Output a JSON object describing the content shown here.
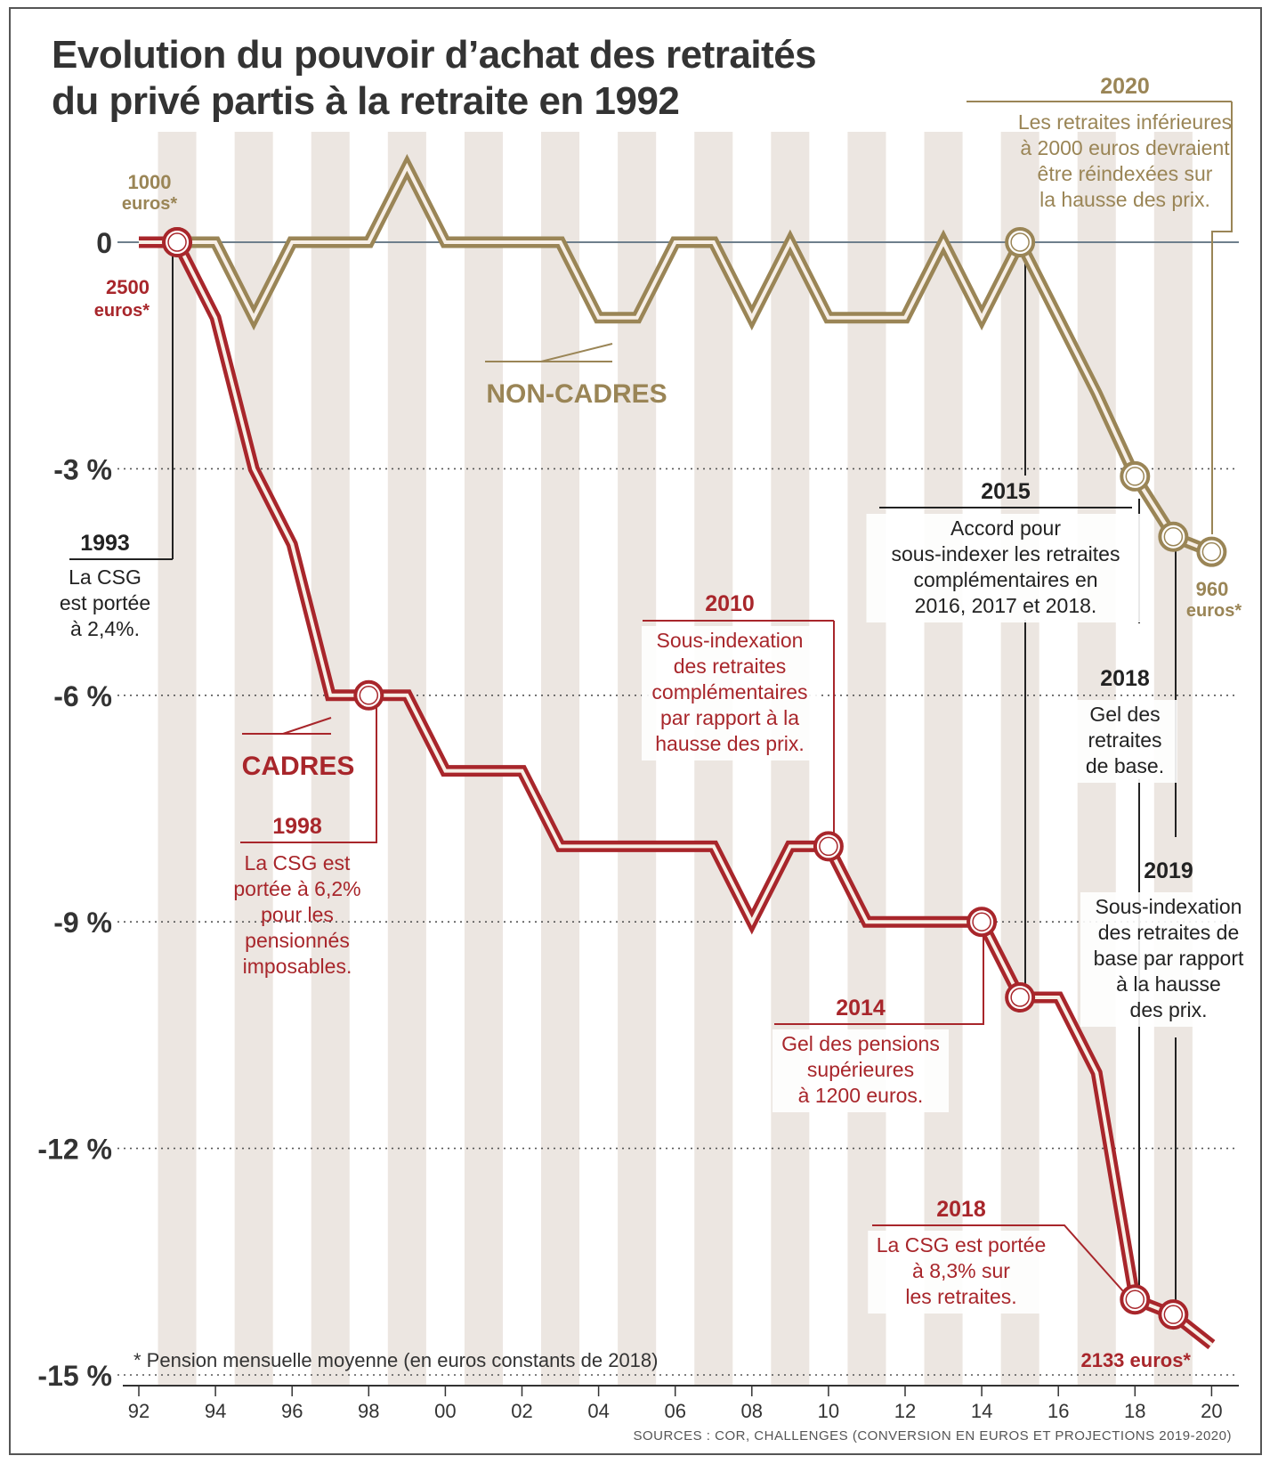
{
  "title_line1": "Evolution du pouvoir d’achat des retraités",
  "title_line2": "du privé partis à la retraite en 1992",
  "footnote": "* Pension mensuelle moyenne (en euros constants de 2018)",
  "sources": "SOURCES : COR, CHALLENGES (CONVERSION EN EUROS ET PROJECTIONS 2019-2020)",
  "colors": {
    "cadres": "#a8262b",
    "non_cadres": "#9a8556",
    "stripe": "#ece6e1",
    "text": "#333333"
  },
  "chart_data": {
    "type": "line",
    "title": "Evolution du pouvoir d’achat des retraités du privé partis à la retraite en 1992",
    "xlabel": "",
    "ylabel": "",
    "xlim": [
      1992,
      2020.5
    ],
    "ylim": [
      -15,
      1
    ],
    "x_ticks": [
      1992,
      1994,
      1996,
      1998,
      2000,
      2002,
      2004,
      2006,
      2008,
      2010,
      2012,
      2014,
      2016,
      2018,
      2020
    ],
    "x_tick_labels": [
      "92",
      "94",
      "96",
      "98",
      "00",
      "02",
      "04",
      "06",
      "08",
      "10",
      "12",
      "14",
      "16",
      "18",
      "20"
    ],
    "y_ticks": [
      0,
      -3,
      -6,
      -9,
      -12,
      -15
    ],
    "y_tick_labels": [
      "0",
      "-3 %",
      "-6 %",
      "-9 %",
      "-12 %",
      "-15 %"
    ],
    "grid": "dotted horizontal at ticks",
    "series": [
      {
        "name": "NON-CADRES",
        "points": [
          [
            1993,
            0
          ],
          [
            1994,
            0
          ],
          [
            1995,
            -1
          ],
          [
            1996,
            0
          ],
          [
            1997,
            0
          ],
          [
            1998,
            0
          ],
          [
            1999,
            1
          ],
          [
            2000,
            0
          ],
          [
            2001,
            0
          ],
          [
            2002,
            0
          ],
          [
            2003,
            0
          ],
          [
            2004,
            -1
          ],
          [
            2005,
            -1
          ],
          [
            2006,
            0
          ],
          [
            2007,
            0
          ],
          [
            2008,
            -1
          ],
          [
            2009,
            0
          ],
          [
            2010,
            -1
          ],
          [
            2011,
            -1
          ],
          [
            2012,
            -1
          ],
          [
            2013,
            0
          ],
          [
            2014,
            -1
          ],
          [
            2015,
            0
          ],
          [
            2016,
            -1
          ],
          [
            2017,
            -2
          ],
          [
            2018,
            -3.1
          ],
          [
            2019,
            -3.9
          ],
          [
            2020,
            -4.1
          ]
        ],
        "markers": [
          [
            1993,
            0
          ],
          [
            2015,
            0
          ],
          [
            2018,
            -3.1
          ],
          [
            2019,
            -3.9
          ],
          [
            2020,
            -4.1
          ]
        ]
      },
      {
        "name": "CADRES",
        "points": [
          [
            1992,
            0
          ],
          [
            1993,
            0
          ],
          [
            1994,
            -1
          ],
          [
            1995,
            -3
          ],
          [
            1996,
            -4
          ],
          [
            1997,
            -6
          ],
          [
            1998,
            -6
          ],
          [
            1999,
            -6
          ],
          [
            2000,
            -7
          ],
          [
            2001,
            -7
          ],
          [
            2002,
            -7
          ],
          [
            2003,
            -8
          ],
          [
            2004,
            -8
          ],
          [
            2005,
            -8
          ],
          [
            2006,
            -8
          ],
          [
            2007,
            -8
          ],
          [
            2008,
            -9
          ],
          [
            2009,
            -8
          ],
          [
            2010,
            -8
          ],
          [
            2011,
            -9
          ],
          [
            2012,
            -9
          ],
          [
            2013,
            -9
          ],
          [
            2014,
            -9
          ],
          [
            2015,
            -10
          ],
          [
            2016,
            -10
          ],
          [
            2017,
            -11
          ],
          [
            2018,
            -14
          ],
          [
            2019,
            -14.2
          ],
          [
            2020,
            -14.6
          ]
        ],
        "markers": [
          [
            1993,
            0
          ],
          [
            1998,
            -6
          ],
          [
            2010,
            -8
          ],
          [
            2014,
            -9
          ],
          [
            2015,
            -10
          ],
          [
            2018,
            -14
          ],
          [
            2019,
            -14.2
          ]
        ]
      }
    ],
    "labels": {
      "nc_start_value": "1000",
      "nc_start_unit": "euros*",
      "nc_end_value": "960",
      "nc_end_unit": "euros*",
      "c_start_value": "2500",
      "c_start_unit": "euros*",
      "c_end": "2133 euros*",
      "non_cadres": "NON-CADRES",
      "cadres": "CADRES"
    },
    "annotations": [
      {
        "year": "2020",
        "lines": [
          "Les retraites inférieures",
          "à 2000 euros devraient",
          "être réindexées sur",
          "la hausse des prix."
        ],
        "series": "NON-CADRES"
      },
      {
        "year": "1993",
        "lines": [
          "La CSG",
          "est portée",
          "à 2,4%."
        ],
        "series": "both"
      },
      {
        "year": "2015",
        "lines": [
          "Accord pour",
          "sous-indexer les retraites",
          "complémentaires en",
          "2016, 2017 et 2018."
        ],
        "series": "both"
      },
      {
        "year": "2010",
        "lines": [
          "Sous-indexation",
          "des retraites",
          "complémentaires",
          "par rapport à la",
          "hausse des prix."
        ],
        "series": "CADRES"
      },
      {
        "year": "2018",
        "lines": [
          "Gel des",
          "retraites",
          "de base."
        ],
        "series": "both"
      },
      {
        "year": "1998",
        "lines": [
          "La CSG est",
          "portée à 6,2%",
          "pour les",
          "pensionnés",
          "imposables."
        ],
        "series": "CADRES"
      },
      {
        "year": "2019",
        "lines": [
          "Sous-indexation",
          "des retraites de",
          "base par rapport",
          "à la hausse",
          "des prix."
        ],
        "series": "both"
      },
      {
        "year": "2014",
        "lines": [
          "Gel des pensions",
          "supérieures",
          "à 1200 euros."
        ],
        "series": "CADRES"
      },
      {
        "year": "2018",
        "lines": [
          "La CSG est portée",
          "à 8,3% sur",
          "les retraites."
        ],
        "series": "CADRES"
      }
    ]
  }
}
